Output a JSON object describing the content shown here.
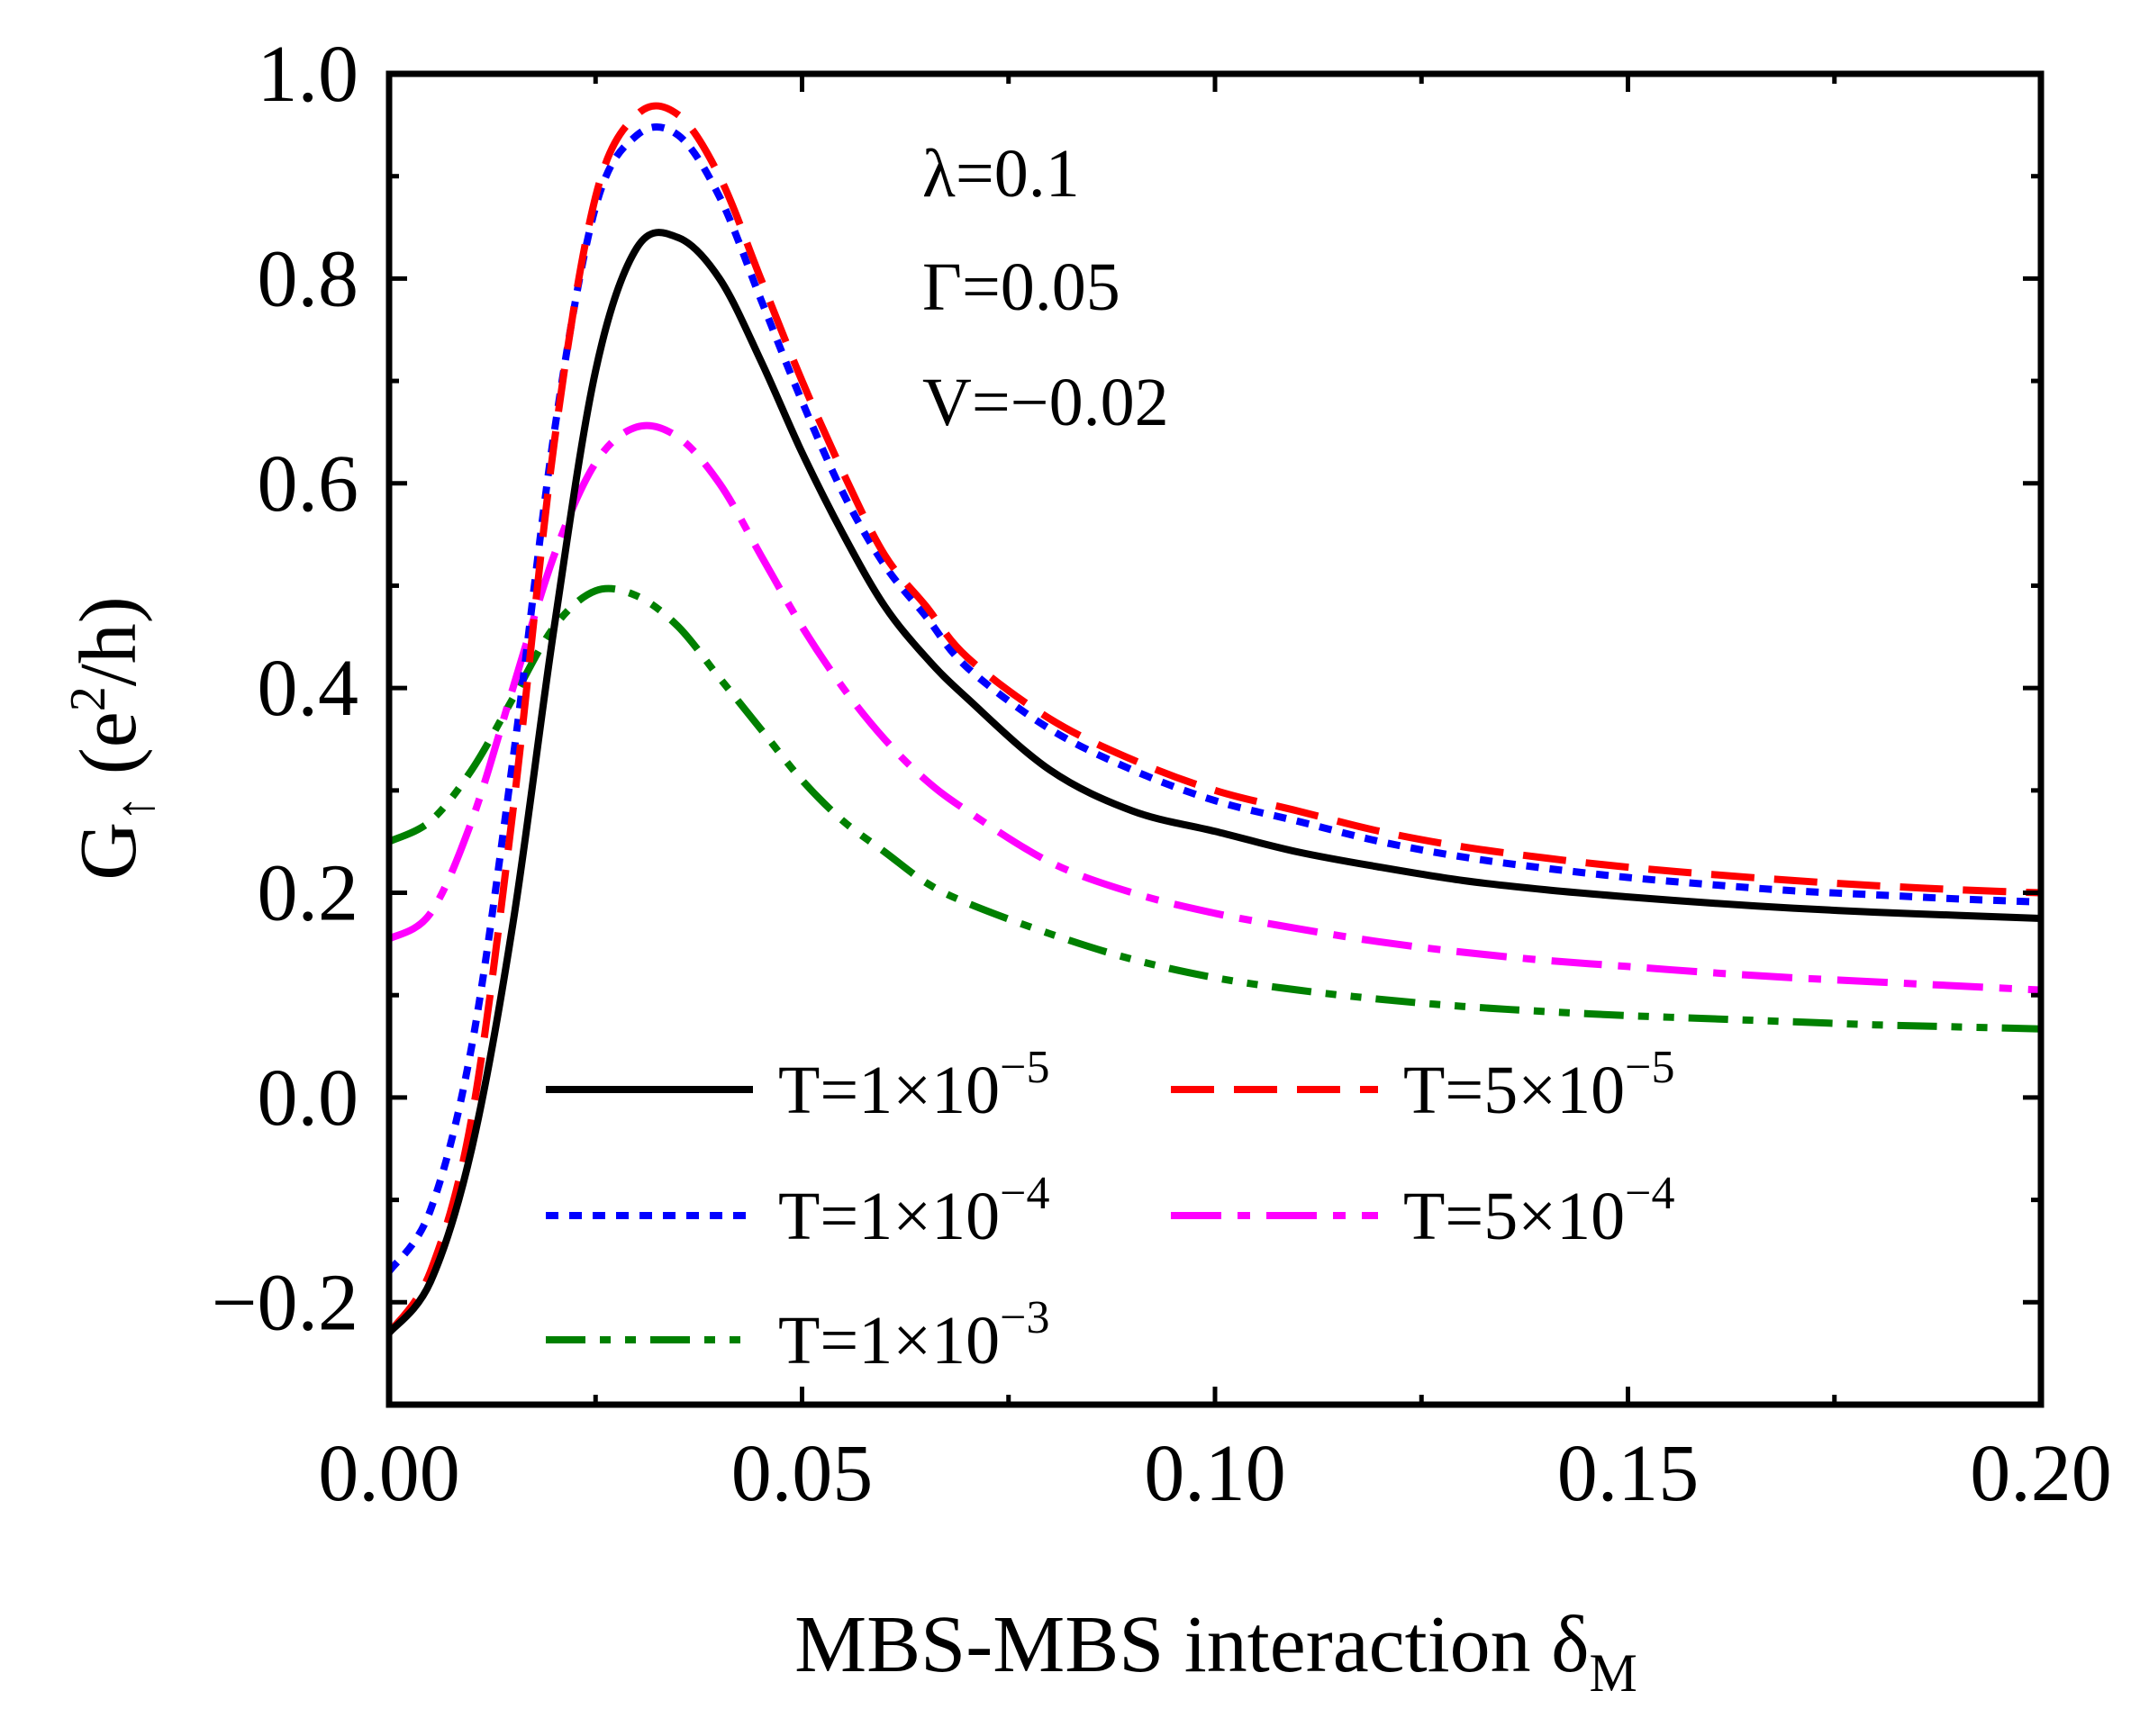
{
  "chart_data": {
    "type": "line",
    "title": "",
    "xlabel": {
      "main": "MBS-MBS interaction δ",
      "sub": "M"
    },
    "ylabel": {
      "main": "G",
      "sub": "↑",
      "pre": " (e",
      "sup": "2",
      "post": "/h)"
    },
    "xlim": [
      0,
      0.2
    ],
    "ylim": [
      -0.3,
      1.0
    ],
    "xticks": [
      "0.00",
      "0.05",
      "0.10",
      "0.15",
      "0.20"
    ],
    "xtick_values": [
      0,
      0.05,
      0.1,
      0.15,
      0.2
    ],
    "yticks": [
      "−0.2",
      "0.0",
      "0.2",
      "0.4",
      "0.6",
      "0.8",
      "1.0"
    ],
    "ytick_values": [
      -0.2,
      0,
      0.2,
      0.4,
      0.6,
      0.8,
      1.0
    ],
    "annotations": [
      "λ=0.1",
      "Γ=0.05",
      "V=−0.02"
    ],
    "legend_position": "lower-middle",
    "x": [
      0,
      0.005,
      0.01,
      0.015,
      0.02,
      0.025,
      0.03,
      0.035,
      0.04,
      0.045,
      0.05,
      0.055,
      0.06,
      0.065,
      0.07,
      0.08,
      0.09,
      0.1,
      0.11,
      0.12,
      0.13,
      0.14,
      0.15,
      0.16,
      0.17,
      0.18,
      0.19,
      0.2
    ],
    "series": [
      {
        "name": "T=1×10⁻⁵",
        "base": "T=1×10",
        "exp": "−5",
        "color": "#000000",
        "style": "solid",
        "values": [
          -0.23,
          -0.18,
          -0.05,
          0.17,
          0.46,
          0.71,
          0.83,
          0.84,
          0.8,
          0.72,
          0.63,
          0.55,
          0.48,
          0.43,
          0.39,
          0.32,
          0.28,
          0.26,
          0.24,
          0.225,
          0.212,
          0.203,
          0.196,
          0.19,
          0.185,
          0.181,
          0.178,
          0.175
        ]
      },
      {
        "name": "T=5×10⁻⁵",
        "base": "T=5×10",
        "exp": "−5",
        "color": "#ff0000",
        "style": "dashed",
        "values": [
          -0.23,
          -0.17,
          -0.02,
          0.28,
          0.64,
          0.88,
          0.96,
          0.96,
          0.9,
          0.8,
          0.7,
          0.61,
          0.53,
          0.48,
          0.43,
          0.37,
          0.33,
          0.3,
          0.28,
          0.26,
          0.245,
          0.234,
          0.225,
          0.218,
          0.212,
          0.207,
          0.203,
          0.2
        ]
      },
      {
        "name": "T=1×10⁻⁴",
        "base": "T=1×10",
        "exp": "−4",
        "color": "#0000ff",
        "style": "dotted",
        "values": [
          -0.17,
          -0.11,
          0.05,
          0.33,
          0.65,
          0.87,
          0.94,
          0.94,
          0.88,
          0.78,
          0.68,
          0.59,
          0.52,
          0.47,
          0.42,
          0.36,
          0.32,
          0.29,
          0.27,
          0.25,
          0.235,
          0.224,
          0.215,
          0.208,
          0.202,
          0.198,
          0.194,
          0.191
        ]
      },
      {
        "name": "T=5×10⁻⁴",
        "base": "T=5×10",
        "exp": "−4",
        "color": "#ff00ff",
        "style": "dashdot",
        "values": [
          0.155,
          0.18,
          0.27,
          0.4,
          0.53,
          0.62,
          0.655,
          0.645,
          0.6,
          0.53,
          0.46,
          0.4,
          0.35,
          0.31,
          0.28,
          0.23,
          0.2,
          0.18,
          0.165,
          0.152,
          0.142,
          0.134,
          0.128,
          0.122,
          0.117,
          0.113,
          0.109,
          0.105
        ]
      },
      {
        "name": "T=1×10⁻³",
        "base": "T=1×10",
        "exp": "−3",
        "color": "#008000",
        "style": "dashdotdot",
        "values": [
          0.25,
          0.27,
          0.32,
          0.39,
          0.46,
          0.495,
          0.49,
          0.46,
          0.41,
          0.36,
          0.31,
          0.27,
          0.24,
          0.21,
          0.19,
          0.16,
          0.135,
          0.117,
          0.105,
          0.096,
          0.089,
          0.084,
          0.08,
          0.077,
          0.074,
          0.071,
          0.069,
          0.067
        ]
      }
    ]
  }
}
